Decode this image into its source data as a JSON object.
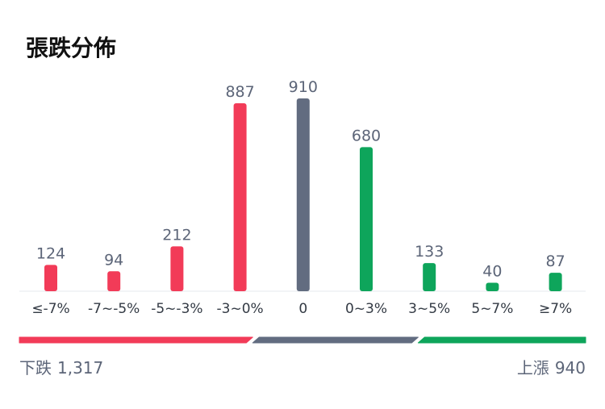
{
  "title": "張跌分佈",
  "chart_data": {
    "type": "bar",
    "categories": [
      "≤-7%",
      "-7~-5%",
      "-5~-3%",
      "-3~0%",
      "0",
      "0~3%",
      "3~5%",
      "5~7%",
      "≥7%"
    ],
    "values": [
      124,
      94,
      212,
      887,
      910,
      680,
      133,
      40,
      87
    ],
    "ylim": [
      0,
      910
    ],
    "grid": false,
    "colors": {
      "down": "#f23b58",
      "flat": "#626c80",
      "up": "#0ea55b"
    },
    "bar_groups": [
      "down",
      "down",
      "down",
      "down",
      "flat",
      "up",
      "up",
      "up",
      "up"
    ]
  },
  "summary": {
    "down_label": "下跌",
    "down_count": "1,317",
    "up_label": "上漲",
    "up_count": "940",
    "proportions": {
      "down": 1317,
      "flat": 910,
      "up": 940
    }
  }
}
